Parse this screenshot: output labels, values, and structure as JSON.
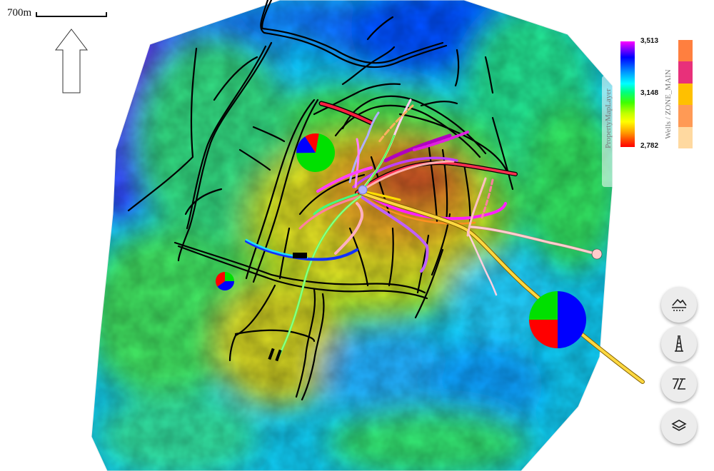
{
  "scale": {
    "label": "700m"
  },
  "colorbar": {
    "title": "PropertyMapLayer",
    "ticks": [
      "3,513",
      "3,148",
      "2,782"
    ],
    "colors": [
      "#ff00ff",
      "#0000ff",
      "#00ffff",
      "#00ff00",
      "#ffff00",
      "#ff0000"
    ]
  },
  "zone_legend": {
    "title": "Wells / ZONE_MAIN",
    "colors": [
      "#ff7f3f",
      "#e8307a",
      "#ffc000",
      "#ff9a55",
      "#ffd9a0"
    ]
  },
  "controls": {
    "buttons": [
      {
        "name": "layers-button",
        "icon": "layers-icon"
      },
      {
        "name": "fault-polygons-button",
        "icon": "fault-icon"
      },
      {
        "name": "wells-button",
        "icon": "derrick-icon"
      },
      {
        "name": "surface-button",
        "icon": "surface-icon"
      }
    ]
  },
  "pie_charts": [
    {
      "name": "pie-north",
      "colors": [
        "#00e000",
        "#0000ff",
        "#ff0000"
      ],
      "fractions": [
        0.72,
        0.16,
        0.12
      ]
    },
    {
      "name": "pie-west",
      "colors": [
        "#00e000",
        "#0000ff",
        "#ff0000"
      ],
      "fractions": [
        0.25,
        0.4,
        0.35
      ]
    },
    {
      "name": "pie-east",
      "colors": [
        "#0000ff",
        "#ff0000",
        "#00e000"
      ],
      "fractions": [
        0.5,
        0.25,
        0.25
      ]
    }
  ]
}
